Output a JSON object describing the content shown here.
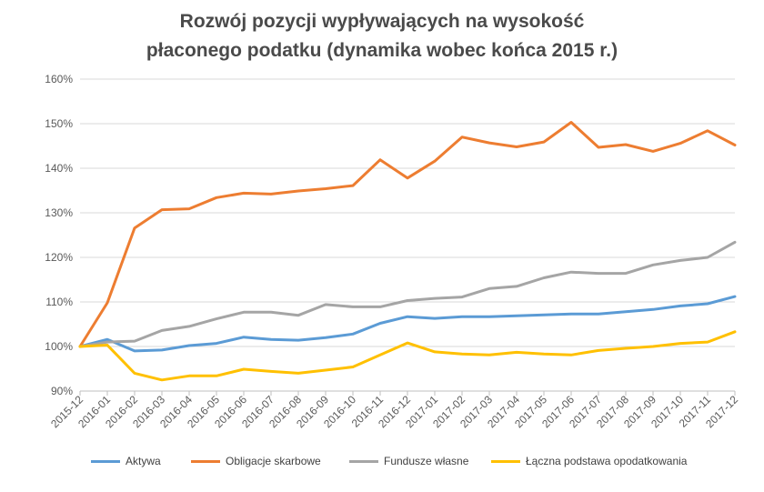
{
  "chart_data": {
    "type": "line",
    "title_line1": "Rozwój pozycji wypływających na wysokość",
    "title_line2": "płaconego podatku (dynamika wobec końca 2015 r.)",
    "xlabel": "",
    "ylabel": "",
    "ylim": [
      90,
      160
    ],
    "yticks": [
      90,
      100,
      110,
      120,
      130,
      140,
      150,
      160
    ],
    "ytick_labels": [
      "90%",
      "100%",
      "110%",
      "120%",
      "130%",
      "140%",
      "150%",
      "160%"
    ],
    "grid": true,
    "legend_position": "bottom",
    "categories": [
      "2015-12",
      "2016-01",
      "2016-02",
      "2016-03",
      "2016-04",
      "2016-05",
      "2016-06",
      "2016-07",
      "2016-08",
      "2016-09",
      "2016-10",
      "2016-11",
      "2016-12",
      "2017-01",
      "2017-02",
      "2017-03",
      "2017-04",
      "2017-05",
      "2017-06",
      "2017-07",
      "2017-08",
      "2017-09",
      "2017-10",
      "2017-11",
      "2017-12"
    ],
    "series": [
      {
        "name": "Aktywa",
        "color": "#5b9bd5",
        "values": [
          100,
          101.6,
          99,
          99.2,
          100.2,
          100.7,
          102.1,
          101.6,
          101.4,
          102,
          102.8,
          105.2,
          106.7,
          106.3,
          106.7,
          106.7,
          106.9,
          107.1,
          107.3,
          107.3,
          107.8,
          108.3,
          109.1,
          109.6,
          111.2
        ]
      },
      {
        "name": "Obligacje skarbowe",
        "color": "#ed7d31",
        "values": [
          100,
          109.8,
          126.6,
          130.7,
          130.9,
          133.4,
          134.4,
          134.2,
          134.9,
          135.4,
          136.1,
          141.9,
          137.8,
          141.6,
          147,
          145.7,
          144.8,
          145.9,
          150.3,
          144.7,
          145.3,
          143.8,
          145.6,
          148.4,
          145.2
        ]
      },
      {
        "name": "Fundusze własne",
        "color": "#a5a5a5",
        "values": [
          100,
          101,
          101.2,
          103.6,
          104.5,
          106.2,
          107.7,
          107.7,
          107,
          109.4,
          108.9,
          108.9,
          110.3,
          110.8,
          111.1,
          113,
          113.5,
          115.4,
          116.7,
          116.4,
          116.4,
          118.3,
          119.3,
          120,
          123.4
        ]
      },
      {
        "name": "Łączna podstawa opodatkowania",
        "color": "#ffc000",
        "values": [
          100,
          100.3,
          94,
          92.5,
          93.4,
          93.4,
          94.9,
          94.4,
          94,
          94.7,
          95.4,
          98.1,
          100.8,
          98.8,
          98.3,
          98.1,
          98.7,
          98.3,
          98.1,
          99.1,
          99.6,
          100,
          100.7,
          101,
          103.3
        ]
      }
    ]
  }
}
